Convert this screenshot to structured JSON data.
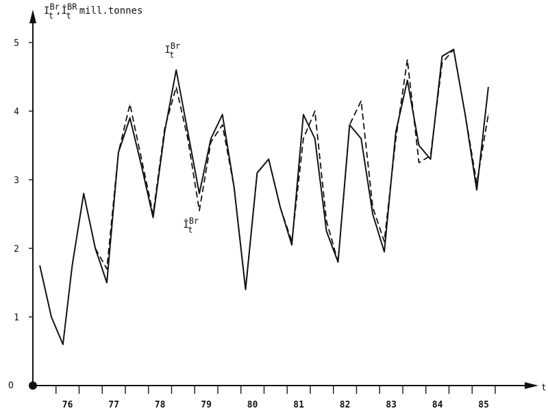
{
  "chart_data": {
    "type": "line",
    "ylabel": {
      "series1_symbol": "I",
      "series1_sup": "Br",
      "series1_sub": "t",
      "sep": ",",
      "series2_symbol": "Î",
      "series2_sup": "BR",
      "series2_sub": "t",
      "unit": "mill.tonnes"
    },
    "xlabel": "t",
    "origin_label": "O",
    "ylim": [
      0,
      5.5
    ],
    "xlim": [
      75.25,
      85.4
    ],
    "y_ticks": [
      1,
      2,
      3,
      4,
      5
    ],
    "y_tick_labels": [
      "1",
      "2",
      "3",
      "4",
      "5"
    ],
    "x_ticks": [
      75.75,
      76.25,
      76.75,
      77.25,
      77.75,
      78.25,
      78.75,
      79.25,
      79.75,
      80.25,
      80.75,
      81.25,
      81.75,
      82.25,
      82.75,
      83.25,
      83.75,
      84.25,
      84.75,
      85.25
    ],
    "x_tick_labels": [
      {
        "x": 76.0,
        "label": "76"
      },
      {
        "x": 77.0,
        "label": "77"
      },
      {
        "x": 78.0,
        "label": "78"
      },
      {
        "x": 79.0,
        "label": "79"
      },
      {
        "x": 80.0,
        "label": "80"
      },
      {
        "x": 81.0,
        "label": "81"
      },
      {
        "x": 82.0,
        "label": "82"
      },
      {
        "x": 83.0,
        "label": "83"
      },
      {
        "x": 84.0,
        "label": "84"
      },
      {
        "x": 85.0,
        "label": "85"
      }
    ],
    "series": [
      {
        "id": "actual",
        "style": "solid",
        "label_symbol": "I",
        "label_sup": "Br",
        "label_sub": "t",
        "label_anchor": [
          78.1,
          4.85
        ],
        "points": [
          [
            75.4,
            1.75
          ],
          [
            75.65,
            1.0
          ],
          [
            75.9,
            0.6
          ],
          [
            76.1,
            1.75
          ],
          [
            76.35,
            2.8
          ],
          [
            76.6,
            2.0
          ],
          [
            76.85,
            1.5
          ],
          [
            77.1,
            3.4
          ],
          [
            77.35,
            3.9
          ],
          [
            77.6,
            3.2
          ],
          [
            77.85,
            2.45
          ],
          [
            78.1,
            3.7
          ],
          [
            78.35,
            4.6
          ],
          [
            78.6,
            3.7
          ],
          [
            78.85,
            2.8
          ],
          [
            79.1,
            3.6
          ],
          [
            79.35,
            3.95
          ],
          [
            79.6,
            2.9
          ],
          [
            79.85,
            1.4
          ],
          [
            80.1,
            3.1
          ],
          [
            80.35,
            3.3
          ],
          [
            80.6,
            2.6
          ],
          [
            80.85,
            2.05
          ],
          [
            81.1,
            3.95
          ],
          [
            81.35,
            3.6
          ],
          [
            81.6,
            2.25
          ],
          [
            81.85,
            1.8
          ],
          [
            82.1,
            3.8
          ],
          [
            82.35,
            3.6
          ],
          [
            82.6,
            2.5
          ],
          [
            82.85,
            1.95
          ],
          [
            83.1,
            3.7
          ],
          [
            83.35,
            4.45
          ],
          [
            83.6,
            3.5
          ],
          [
            83.85,
            3.3
          ],
          [
            84.1,
            4.8
          ],
          [
            84.35,
            4.9
          ],
          [
            84.6,
            3.95
          ],
          [
            84.85,
            2.85
          ],
          [
            85.1,
            4.35
          ]
        ]
      },
      {
        "id": "fitted",
        "style": "dashed",
        "label_symbol": "Î",
        "label_sup": "Br",
        "label_sub": "t",
        "label_anchor": [
          78.5,
          2.3
        ],
        "points": [
          [
            76.6,
            2.0
          ],
          [
            76.85,
            1.7
          ],
          [
            77.1,
            3.4
          ],
          [
            77.35,
            4.1
          ],
          [
            77.6,
            3.3
          ],
          [
            77.85,
            2.5
          ],
          [
            78.1,
            3.75
          ],
          [
            78.35,
            4.35
          ],
          [
            78.6,
            3.6
          ],
          [
            78.85,
            2.55
          ],
          [
            79.1,
            3.55
          ],
          [
            79.35,
            3.8
          ],
          [
            79.6,
            2.9
          ],
          [
            79.85,
            1.4
          ],
          [
            80.1,
            3.1
          ],
          [
            80.35,
            3.3
          ],
          [
            80.6,
            2.6
          ],
          [
            80.85,
            2.1
          ],
          [
            81.1,
            3.6
          ],
          [
            81.35,
            4.0
          ],
          [
            81.6,
            2.4
          ],
          [
            81.85,
            1.8
          ],
          [
            82.1,
            3.8
          ],
          [
            82.35,
            4.15
          ],
          [
            82.6,
            2.6
          ],
          [
            82.85,
            2.1
          ],
          [
            83.1,
            3.6
          ],
          [
            83.35,
            4.75
          ],
          [
            83.6,
            3.25
          ],
          [
            83.85,
            3.35
          ],
          [
            84.1,
            4.7
          ],
          [
            84.35,
            4.9
          ],
          [
            84.6,
            3.95
          ],
          [
            84.85,
            2.95
          ],
          [
            85.1,
            3.95
          ]
        ]
      }
    ],
    "grid": false,
    "legend": "inline labels"
  }
}
